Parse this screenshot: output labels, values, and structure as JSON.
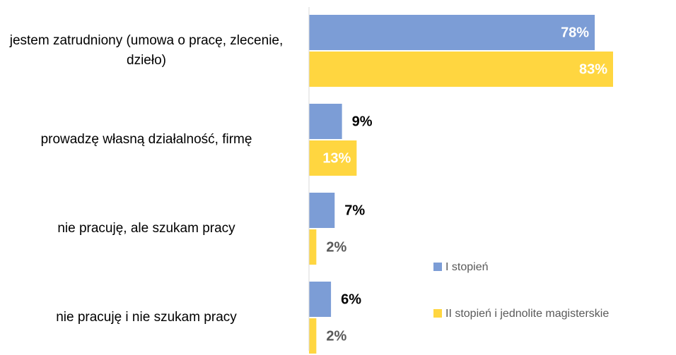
{
  "chart_data": {
    "type": "bar",
    "orientation": "horizontal",
    "categories": [
      "jestem zatrudniony (umowa o pracę, zlecenie, dzieło)",
      "prowadzę własną działalność, firmę",
      "nie pracuję, ale szukam pracy",
      "nie pracuję i nie szukam pracy"
    ],
    "series": [
      {
        "name": "I stopień",
        "color": "#7c9dd6",
        "values": [
          78,
          9,
          7,
          6
        ],
        "value_labels": [
          "78%",
          "9%",
          "7%",
          "6%"
        ]
      },
      {
        "name": "II stopień i jednolite magisterskie",
        "color": "#ffd640",
        "values": [
          83,
          13,
          2,
          2
        ],
        "value_labels": [
          "83%",
          "13%",
          "2%",
          "2%"
        ]
      }
    ],
    "legend": "right"
  }
}
